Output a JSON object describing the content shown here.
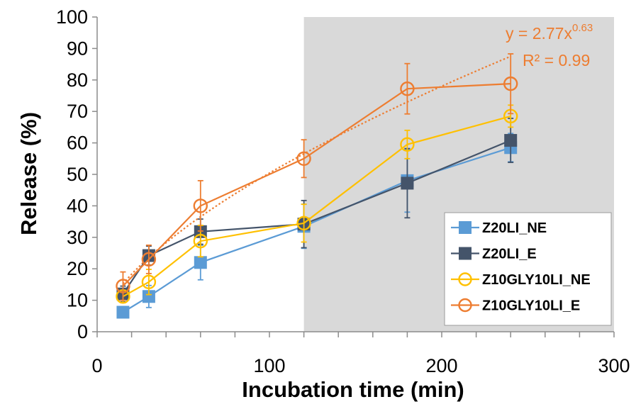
{
  "chart_data": {
    "type": "line",
    "xlabel": "Incubation time (min)",
    "ylabel": "Release (%)",
    "xlim": [
      0,
      300
    ],
    "ylim": [
      0,
      100
    ],
    "x_ticks": [
      0,
      100,
      200,
      300
    ],
    "y_ticks": [
      0,
      10,
      20,
      30,
      40,
      50,
      60,
      70,
      80,
      90,
      100
    ],
    "shaded_region": {
      "x_start": 120,
      "x_end": 300,
      "color": "#d9d9d9"
    },
    "legend_position": "bottom-right",
    "series": [
      {
        "name": "Z20LI_NE",
        "color": "#5b9bd5",
        "marker": "filled-square",
        "x": [
          15,
          30,
          60,
          120,
          180,
          240
        ],
        "y": [
          6.2,
          11.2,
          22,
          33.5,
          48,
          58.5
        ],
        "error": [
          1.5,
          3.5,
          5.5,
          7,
          10,
          4.5
        ]
      },
      {
        "name": "Z20LI_E",
        "color": "#44546a",
        "marker": "filled-square",
        "x": [
          15,
          30,
          60,
          120,
          180,
          240
        ],
        "y": [
          12,
          24.2,
          31.8,
          34.2,
          47.2,
          60.8
        ],
        "error": [
          2.5,
          3,
          4,
          7.5,
          11,
          7
        ]
      },
      {
        "name": "Z10GLY10LI_NE",
        "color": "#ffc000",
        "marker": "open-circle",
        "x": [
          15,
          30,
          60,
          120,
          180,
          240
        ],
        "y": [
          11.2,
          15.8,
          28.8,
          34.5,
          59.5,
          68.5
        ],
        "error": [
          2,
          4,
          5,
          6,
          4.5,
          3.5
        ]
      },
      {
        "name": "Z10GLY10LI_E",
        "color": "#ed7d31",
        "marker": "open-circle",
        "x": [
          15,
          30,
          60,
          120,
          180,
          240
        ],
        "y": [
          14.5,
          23,
          40,
          55,
          77.2,
          78.8
        ],
        "error": [
          4.5,
          4.5,
          8,
          6,
          8,
          9.5
        ]
      }
    ],
    "fit": {
      "series": "Z10GLY10LI_E",
      "style": "dotted",
      "coefficient": 2.77,
      "exponent": 0.63,
      "equation_prefix": "y = 2.77x",
      "equation_exponent": "0.63",
      "r_squared_label": "R² = 0.99",
      "color": "#ed7d31"
    }
  }
}
